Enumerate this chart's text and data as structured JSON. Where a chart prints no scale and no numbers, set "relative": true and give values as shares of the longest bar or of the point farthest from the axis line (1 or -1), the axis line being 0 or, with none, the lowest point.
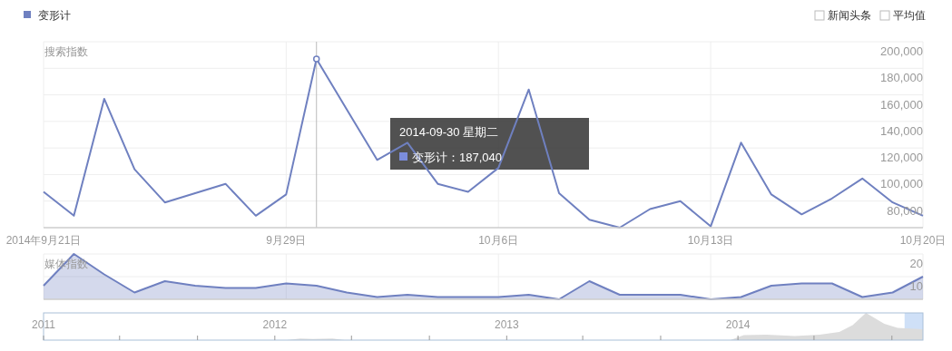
{
  "chart_data": [
    {
      "type": "line",
      "ylabel": "搜索指数",
      "legend": "top left",
      "grid": true,
      "ref_lines": [
        {
          "axis": "x",
          "value": "2014-09-30"
        }
      ],
      "x": [
        "2014-09-21",
        "2014-09-22",
        "2014-09-23",
        "2014-09-24",
        "2014-09-25",
        "2014-09-26",
        "2014-09-27",
        "2014-09-28",
        "2014-09-29",
        "2014-09-30",
        "2014-10-01",
        "2014-10-02",
        "2014-10-03",
        "2014-10-04",
        "2014-10-05",
        "2014-10-06",
        "2014-10-07",
        "2014-10-08",
        "2014-10-09",
        "2014-10-10",
        "2014-10-11",
        "2014-10-12",
        "2014-10-13",
        "2014-10-14",
        "2014-10-15",
        "2014-10-16",
        "2014-10-17",
        "2014-10-18",
        "2014-10-19",
        "2014-10-20"
      ],
      "series": [
        {
          "name": "变形计",
          "color": "#6f80c0",
          "values": [
            87000,
            69000,
            157000,
            104000,
            79000,
            86000,
            93000,
            69000,
            85000,
            187040,
            149000,
            111000,
            124000,
            93000,
            87000,
            105000,
            164000,
            86000,
            66000,
            60000,
            74000,
            80000,
            61000,
            124000,
            85000,
            70000,
            82000,
            97000,
            79000,
            69000
          ]
        }
      ],
      "xlim": [
        "2014-09-21",
        "2014-10-20"
      ],
      "xticks": [
        {
          "value": "2014-09-21",
          "label": "2014年9月21日"
        },
        {
          "value": "2014-09-29",
          "label": "9月29日"
        },
        {
          "value": "2014-10-06",
          "label": "10月6日"
        },
        {
          "value": "2014-10-13",
          "label": "10月13日"
        },
        {
          "value": "2014-10-20",
          "label": "10月20日"
        }
      ],
      "ylim": [
        60000,
        200000
      ],
      "yticks": [
        {
          "value": 80000,
          "label": "80,000"
        },
        {
          "value": 100000,
          "label": "100,000"
        },
        {
          "value": 120000,
          "label": "120,000"
        },
        {
          "value": 140000,
          "label": "140,000"
        },
        {
          "value": 160000,
          "label": "160,000"
        },
        {
          "value": 180000,
          "label": "180,000"
        },
        {
          "value": 200000,
          "label": "200,000"
        }
      ],
      "annotations": [
        "2014-09-30 星期二",
        "变形计：187,040",
        "新闻头条",
        "平均值"
      ]
    },
    {
      "type": "area",
      "ylabel": "媒体指数",
      "grid": true,
      "tick_labels": "y",
      "color": "#6f80c0",
      "x": [
        "2014-09-21",
        "2014-09-22",
        "2014-09-23",
        "2014-09-24",
        "2014-09-25",
        "2014-09-26",
        "2014-09-27",
        "2014-09-28",
        "2014-09-29",
        "2014-09-30",
        "2014-10-01",
        "2014-10-02",
        "2014-10-03",
        "2014-10-04",
        "2014-10-05",
        "2014-10-06",
        "2014-10-07",
        "2014-10-08",
        "2014-10-09",
        "2014-10-10",
        "2014-10-11",
        "2014-10-12",
        "2014-10-13",
        "2014-10-14",
        "2014-10-15",
        "2014-10-16",
        "2014-10-17",
        "2014-10-18",
        "2014-10-19",
        "2014-10-20"
      ],
      "values": [
        6,
        20,
        11,
        3,
        8,
        6,
        5,
        5,
        7,
        6,
        3,
        1,
        2,
        1,
        1,
        1,
        2,
        0,
        8,
        2,
        2,
        2,
        0,
        1,
        6,
        7,
        7,
        1,
        3,
        10
      ],
      "xlim": [
        "2014-09-21",
        "2014-10-20"
      ],
      "xticks": [
        {
          "value": "2014-09-21",
          "label": null
        },
        {
          "value": "2014-09-29",
          "label": null
        },
        {
          "value": "2014-10-06",
          "label": null
        },
        {
          "value": "2014-10-13",
          "label": null
        },
        {
          "value": "2014-10-20",
          "label": null
        }
      ],
      "ylim": [
        0,
        20
      ],
      "yticks": [
        10,
        20
      ]
    },
    {
      "type": "area",
      "relative": true,
      "tick_labels": "x",
      "color": "#dcdcdc",
      "x": [
        "2011-01-01",
        "2012-01-20",
        "2012-02-10",
        "2012-03-01",
        "2012-04-01",
        "2012-04-20",
        "2013-12-20",
        "2014-01-10",
        "2014-02-15",
        "2014-04-01",
        "2014-05-10",
        "2014-06-10",
        "2014-07-01",
        "2014-07-22",
        "2014-08-20",
        "2014-09-10",
        "2014-10-20"
      ],
      "values": [
        0,
        0,
        0.06,
        0.04,
        0.06,
        0,
        0,
        0.18,
        0.2,
        0.15,
        0.2,
        0.3,
        0.55,
        1,
        0.6,
        0.45,
        0.4
      ],
      "xlim": [
        "2011-01-01",
        "2014-10-20"
      ],
      "xticks": [
        {
          "value": "2011-01-01",
          "label": "2011"
        },
        {
          "value": "2011-05-01",
          "label": null
        },
        {
          "value": "2011-09-01",
          "label": null
        },
        {
          "value": "2012-01-01",
          "label": "2012"
        },
        {
          "value": "2012-05-01",
          "label": null
        },
        {
          "value": "2012-09-01",
          "label": null
        },
        {
          "value": "2013-01-01",
          "label": "2013"
        },
        {
          "value": "2013-05-01",
          "label": null
        },
        {
          "value": "2013-09-01",
          "label": null
        },
        {
          "value": "2014-01-01",
          "label": "2014"
        },
        {
          "value": "2014-05-01",
          "label": null
        },
        {
          "value": "2014-09-01",
          "label": null
        }
      ],
      "bands": [
        {
          "axis": "x",
          "from": "2014-09-21",
          "to": "2014-10-20",
          "color": "#cfe0f7"
        }
      ]
    }
  ]
}
